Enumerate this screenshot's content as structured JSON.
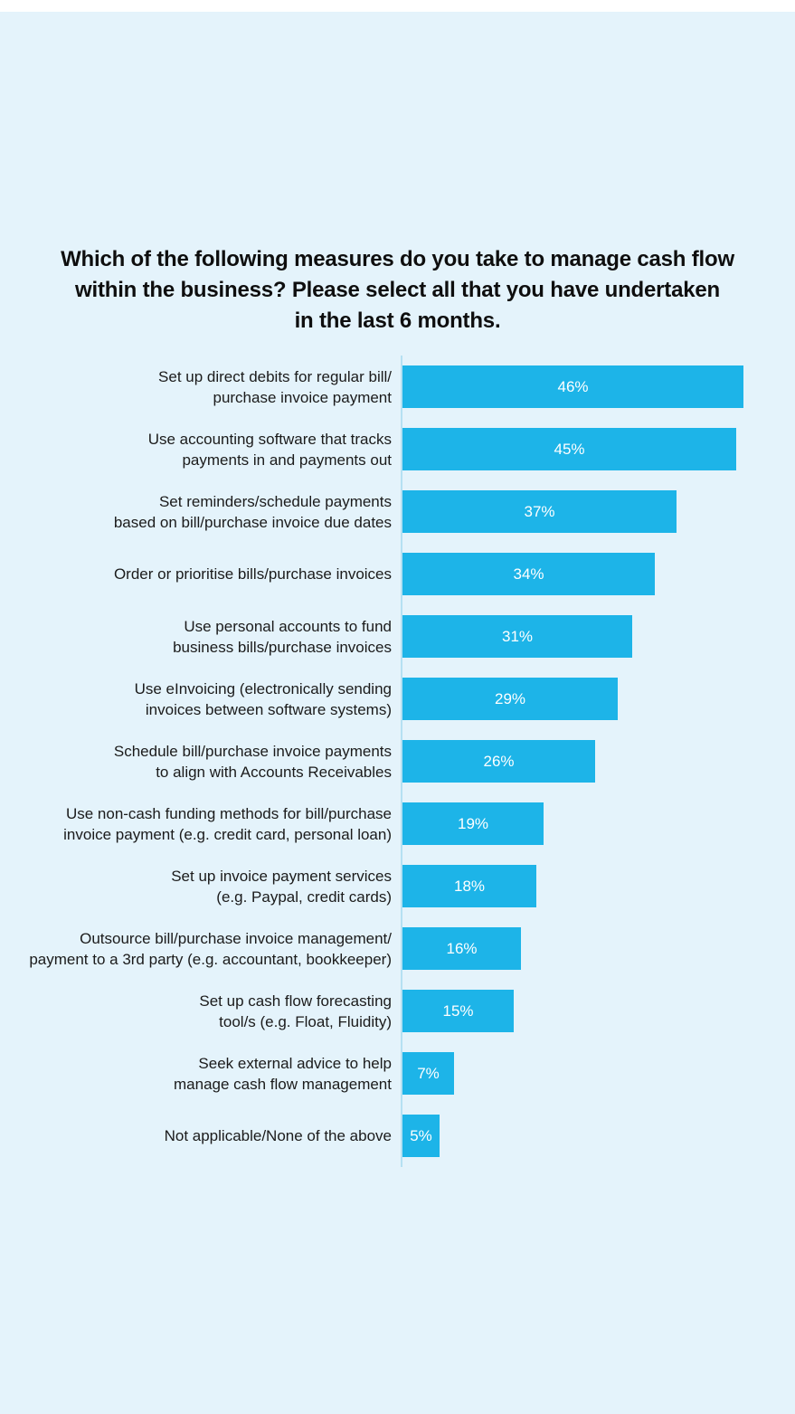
{
  "chart_data": {
    "type": "bar",
    "orientation": "horizontal",
    "title": "Which of the following measures do you take to manage cash flow\nwithin the business? Please select all that you have undertaken\nin the last 6 months.",
    "categories": [
      "Set up direct debits for regular bill/\npurchase invoice payment",
      "Use accounting software that tracks\npayments in and payments out",
      "Set reminders/schedule payments\nbased on bill/purchase invoice due dates",
      "Order or prioritise bills/purchase invoices",
      "Use personal accounts to fund\nbusiness bills/purchase invoices",
      "Use eInvoicing (electronically sending\ninvoices between software systems)",
      "Schedule bill/purchase invoice payments\nto align with Accounts Receivables",
      "Use non-cash funding methods for bill/purchase\ninvoice payment (e.g. credit card, personal loan)",
      "Set up invoice payment services\n(e.g. Paypal, credit cards)",
      "Outsource bill/purchase invoice management/\npayment to a 3rd party (e.g. accountant, bookkeeper)",
      "Set up cash flow forecasting\ntool/s (e.g. Float, Fluidity)",
      "Seek external advice to help\nmanage cash flow management",
      "Not applicable/None of the above"
    ],
    "values": [
      46,
      45,
      37,
      34,
      31,
      29,
      26,
      19,
      18,
      16,
      15,
      7,
      5
    ],
    "value_labels": [
      "46%",
      "45%",
      "37%",
      "34%",
      "31%",
      "29%",
      "26%",
      "19%",
      "18%",
      "16%",
      "15%",
      "7%",
      "5%"
    ],
    "xlabel": "",
    "ylabel": "",
    "xlim": [
      0,
      46
    ],
    "grid": false,
    "legend": "none",
    "value_label_position": "inside-center",
    "bar_color": "#1db4e8",
    "axis_line_color": "#b5e0f2",
    "background_color": "#e4f3fb",
    "title_color": "#0e0e0e",
    "label_color": "#1b1b1b",
    "value_text_color": "#ffffff"
  }
}
